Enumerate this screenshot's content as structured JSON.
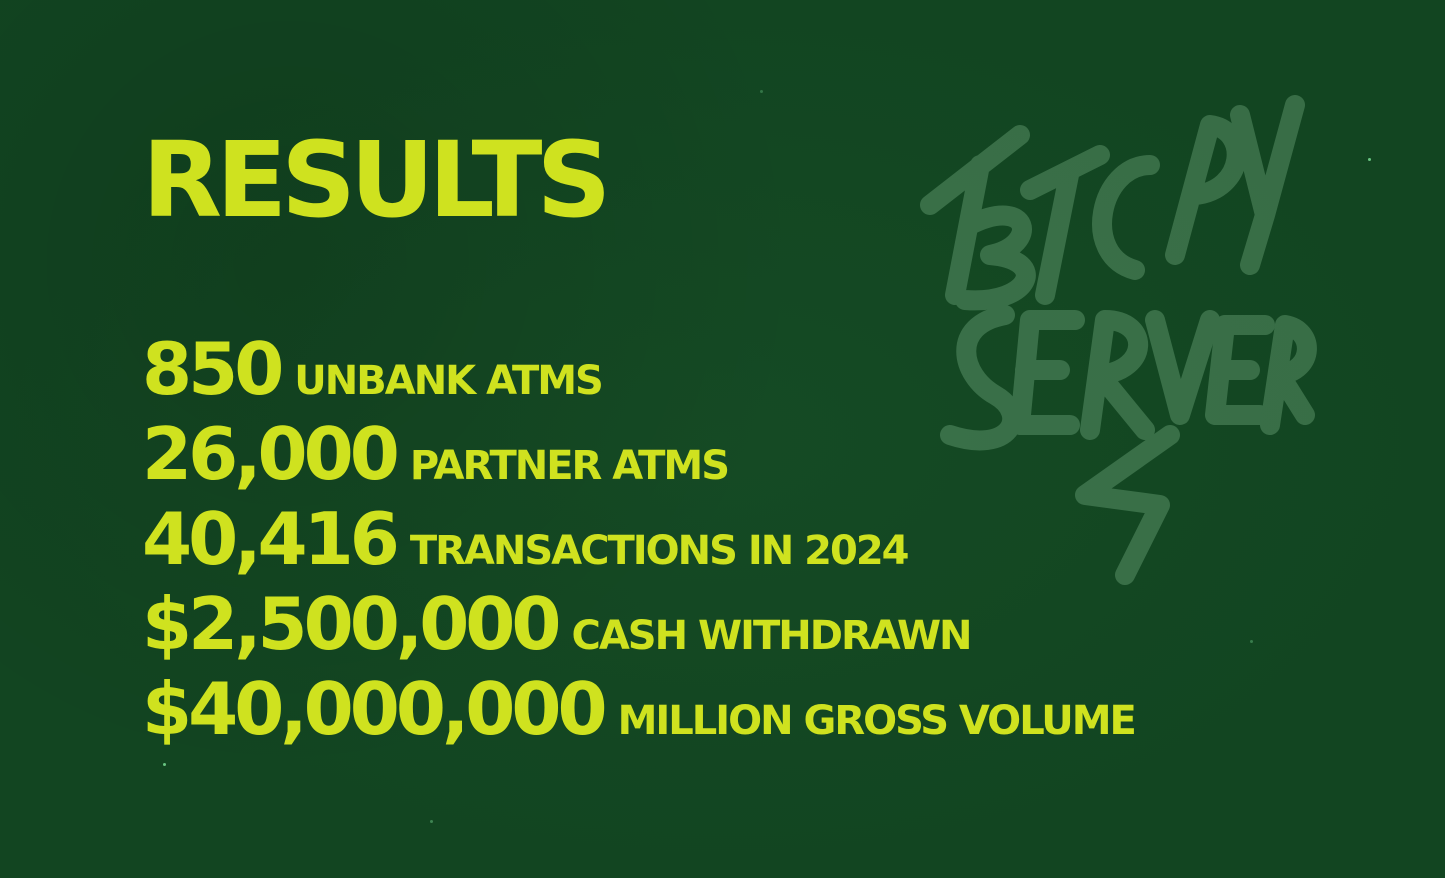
{
  "colors": {
    "background": "#124521",
    "accent": "#cfe21f",
    "logo": "#9bd6a8"
  },
  "title": "RESULTS",
  "stats": [
    {
      "value": "850",
      "label": "UNBANK ATMS"
    },
    {
      "value": "26,000",
      "label": "PARTNER ATMS"
    },
    {
      "value": "40,416",
      "label": "TRANSACTIONS IN 2024"
    },
    {
      "value": "$2,500,000",
      "label": "CASH WITHDRAWN"
    },
    {
      "value": "$40,000,000",
      "label": "MILLION GROSS VOLUME"
    }
  ],
  "logo": {
    "text": "BTCPAY SERVER",
    "icon": "btcpay-server-graffiti-logo"
  }
}
